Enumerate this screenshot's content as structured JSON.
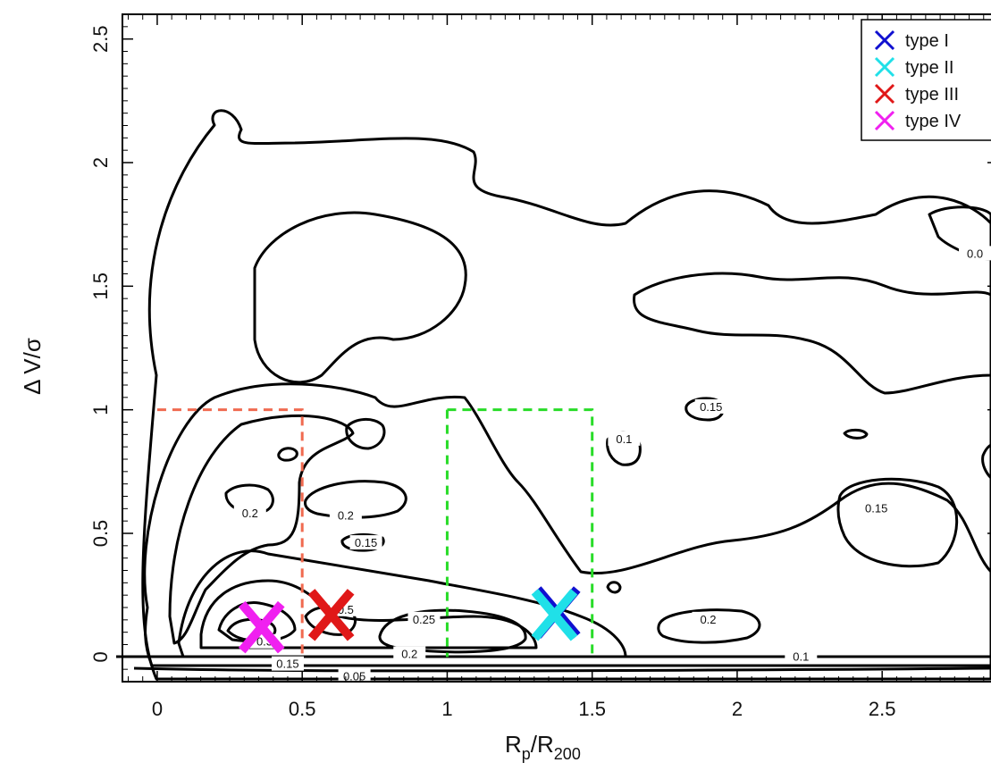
{
  "chart_data": {
    "type": "scatter",
    "xlabel": "R",
    "xlabel_sub": "p",
    "xlabel_mid": "/R",
    "xlabel_sub2": "200",
    "ylabel": "Δ V/σ",
    "xlim": [
      -0.12,
      2.9
    ],
    "ylim": [
      -0.1,
      2.6
    ],
    "x_ticks": [
      0,
      0.5,
      1,
      1.5,
      2,
      2.5
    ],
    "x_tick_labels": [
      "0",
      "0.5",
      "1",
      "1.5",
      "2",
      "2.5"
    ],
    "y_ticks": [
      0,
      0.5,
      1,
      1.5,
      2,
      2.5
    ],
    "y_tick_labels": [
      "0",
      "0.5",
      "1",
      "1.5",
      "2",
      "2.5"
    ],
    "legend_position": "top-right",
    "series": [
      {
        "name": "type I",
        "color": "#1010d0",
        "x": [
          1.38
        ],
        "y": [
          0.18
        ]
      },
      {
        "name": "type II",
        "color": "#20e0e8",
        "x": [
          1.37
        ],
        "y": [
          0.17
        ]
      },
      {
        "name": "type III",
        "color": "#e01818",
        "x": [
          0.6
        ],
        "y": [
          0.17
        ]
      },
      {
        "name": "type IV",
        "color": "#f020f0",
        "x": [
          0.36
        ],
        "y": [
          0.12
        ]
      }
    ],
    "regions": [
      {
        "color": "#f06a50",
        "x": [
          0,
          0.5
        ],
        "y": [
          0,
          1
        ]
      },
      {
        "color": "#28dc28",
        "x": [
          1,
          1.5
        ],
        "y": [
          0,
          1
        ]
      }
    ],
    "contour_labels": [
      {
        "text": "0.05",
        "x": 0.68,
        "y": -0.08
      },
      {
        "text": "0.15",
        "x": 0.45,
        "y": -0.03
      },
      {
        "text": "0.2",
        "x": 0.87,
        "y": 0.01
      },
      {
        "text": "0.3",
        "x": 0.37,
        "y": 0.06
      },
      {
        "text": "0.25",
        "x": 0.92,
        "y": 0.15
      },
      {
        "text": "0.5",
        "x": 0.65,
        "y": 0.19
      },
      {
        "text": "0.2",
        "x": 0.32,
        "y": 0.58
      },
      {
        "text": "0.2",
        "x": 0.65,
        "y": 0.57
      },
      {
        "text": "0.15",
        "x": 0.72,
        "y": 0.46
      },
      {
        "text": "0.15",
        "x": 1.91,
        "y": 1.01
      },
      {
        "text": "0.1",
        "x": 1.61,
        "y": 0.88
      },
      {
        "text": "0.15",
        "x": 2.48,
        "y": 0.6
      },
      {
        "text": "0.2",
        "x": 1.9,
        "y": 0.15
      },
      {
        "text": "0.1",
        "x": 2.22,
        "y": 0.0
      },
      {
        "text": "0.0",
        "x": 2.82,
        "y": 1.63
      }
    ]
  }
}
